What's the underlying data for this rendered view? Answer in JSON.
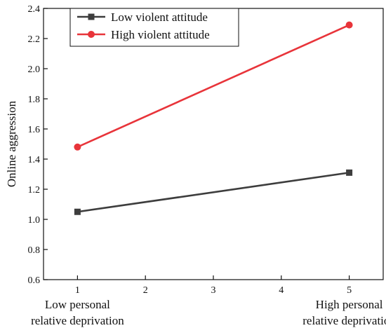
{
  "chart_data": {
    "type": "line",
    "title": "",
    "xlabel": "",
    "ylabel": "Online aggression",
    "x": [
      1,
      5
    ],
    "x_ticks": [
      1,
      2,
      3,
      4,
      5
    ],
    "xlim": [
      0.5,
      5.5
    ],
    "y_ticks": [
      "0.6",
      "0.8",
      "1.0",
      "1.2",
      "1.4",
      "1.6",
      "1.8",
      "2.0",
      "2.2",
      "2.4"
    ],
    "ylim": [
      0.6,
      2.4
    ],
    "grid": false,
    "legend_position": "top-left",
    "x_category_labels": [
      {
        "x": 1,
        "lines": [
          "Low personal",
          "relative deprivation"
        ]
      },
      {
        "x": 5,
        "lines": [
          "High personal",
          "relative deprivation"
        ]
      }
    ],
    "series": [
      {
        "name": "Low violent attitude",
        "values": [
          1.05,
          1.31
        ],
        "color": "#3d3d3d",
        "marker": "square"
      },
      {
        "name": "High violent attitude",
        "values": [
          1.48,
          2.29
        ],
        "color": "#e8343a",
        "marker": "circle"
      }
    ]
  }
}
